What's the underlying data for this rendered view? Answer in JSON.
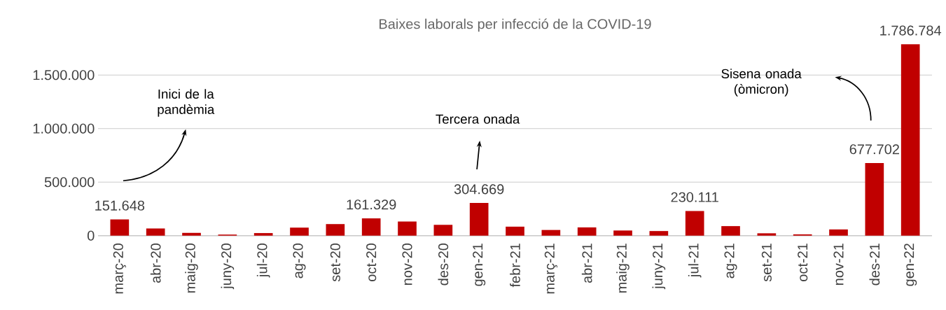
{
  "chart_data": {
    "type": "bar",
    "title": "Baixes laborals per infecció de la COVID-19",
    "categories": [
      "març-20",
      "abr-20",
      "maig-20",
      "juny-20",
      "jul-20",
      "ag-20",
      "set-20",
      "oct-20",
      "nov-20",
      "des-20",
      "gen-21",
      "febr-21",
      "març-21",
      "abr-21",
      "maig-21",
      "juny-21",
      "jul-21",
      "ag-21",
      "set-21",
      "oct-21",
      "nov-21",
      "des-21",
      "gen-22"
    ],
    "values": [
      151648,
      67000,
      26000,
      10000,
      24000,
      75000,
      108000,
      161329,
      132000,
      101000,
      304669,
      84000,
      53000,
      77000,
      48000,
      43000,
      230111,
      89000,
      22000,
      12000,
      58000,
      677702,
      1786784
    ],
    "value_labels": [
      "151.648",
      null,
      null,
      null,
      null,
      null,
      null,
      "161.329",
      null,
      null,
      "304.669",
      null,
      null,
      null,
      null,
      null,
      "230.111",
      null,
      null,
      null,
      null,
      "677.702",
      "1.786.784"
    ],
    "color": "#c00000",
    "ylim": [
      0,
      1786784
    ],
    "yticks": [
      {
        "value": 0,
        "label": "0"
      },
      {
        "value": 500000,
        "label": "500.000"
      },
      {
        "value": 1000000,
        "label": "1.000.000"
      },
      {
        "value": 1500000,
        "label": "1.500.000"
      }
    ],
    "grid": "y",
    "annotations": [
      "Inici de la pandèmia",
      "Tercera onada",
      "Sisena onada (òmicron)"
    ]
  }
}
